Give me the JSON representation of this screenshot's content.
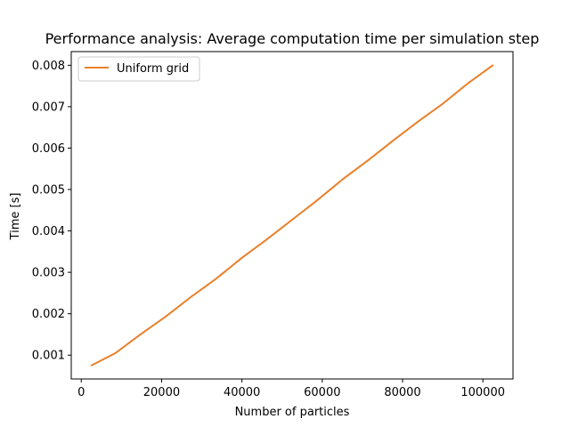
{
  "chart_data": {
    "type": "line",
    "title": "Performance analysis: Average computation time per simulation step",
    "xlabel": "Number of particles",
    "ylabel": "Time [s]",
    "xlim": [
      -2500,
      107500
    ],
    "ylim": [
      0.000425,
      0.00833
    ],
    "xticks": [
      0,
      20000,
      40000,
      60000,
      80000,
      100000
    ],
    "xtick_labels": [
      "0",
      "20000",
      "40000",
      "60000",
      "80000",
      "100000"
    ],
    "yticks": [
      0.001,
      0.002,
      0.003,
      0.004,
      0.005,
      0.006,
      0.007,
      0.008
    ],
    "ytick_labels": [
      "0.001",
      "0.002",
      "0.003",
      "0.004",
      "0.005",
      "0.006",
      "0.007",
      "0.008"
    ],
    "legend": {
      "location": "top-left",
      "entries": [
        "Uniform grid"
      ]
    },
    "series": [
      {
        "name": "Uniform grid",
        "color": "#e8802a",
        "x": [
          2500,
          8500,
          15000,
          21000,
          27500,
          33500,
          40000,
          46000,
          52500,
          58500,
          65000,
          71500,
          77500,
          84000,
          90000,
          96500,
          102500
        ],
        "y": [
          0.00075,
          0.00105,
          0.00152,
          0.00193,
          0.00242,
          0.00284,
          0.00335,
          0.00378,
          0.00427,
          0.00472,
          0.00524,
          0.00571,
          0.00617,
          0.00665,
          0.00707,
          0.00758,
          0.008
        ]
      }
    ]
  }
}
